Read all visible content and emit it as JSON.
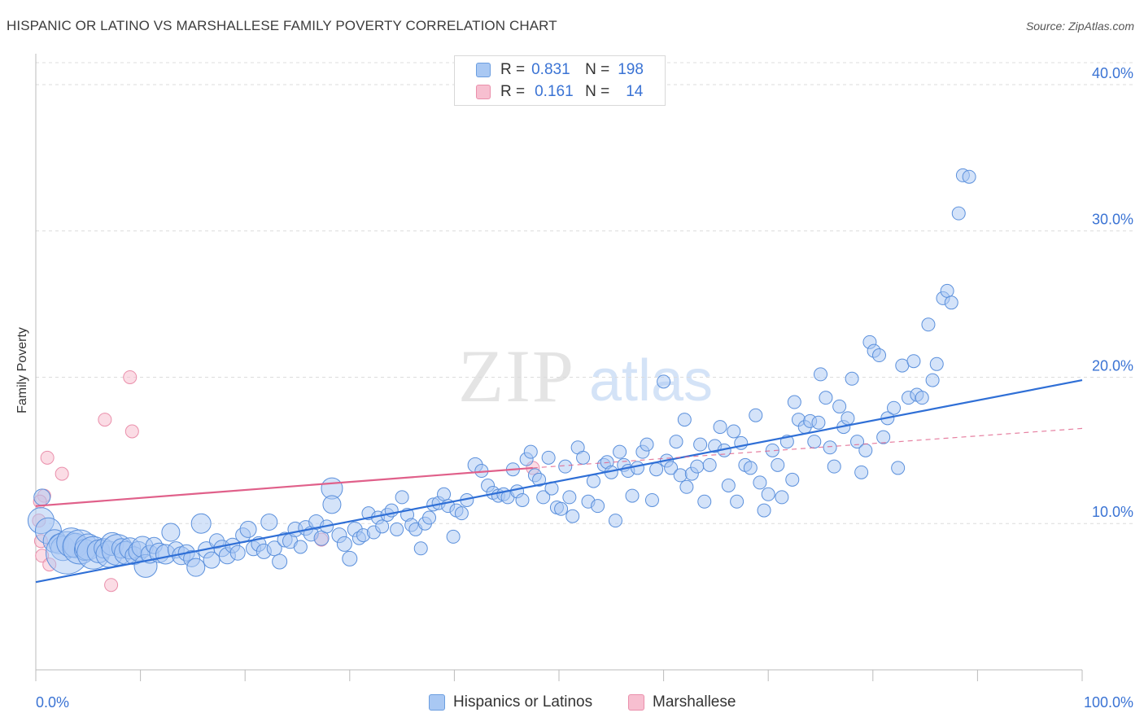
{
  "title": "HISPANIC OR LATINO VS MARSHALLESE FAMILY POVERTY CORRELATION CHART",
  "source": "Source: ZipAtlas.com",
  "watermark": {
    "zip": "ZIP",
    "atlas": "atlas"
  },
  "stats_legend": [
    {
      "r_label": "R =",
      "r_value": "0.831",
      "n_label": "N =",
      "n_value": "198",
      "color": "#a9c8f3"
    },
    {
      "r_label": "R =",
      "r_value": "0.161",
      "n_label": "N =",
      "n_value": "14",
      "color": "#f7bfd0"
    }
  ],
  "bottom_legend": [
    {
      "label": "Hispanics or Latinos",
      "color": "#a9c8f3"
    },
    {
      "label": "Marshallese",
      "color": "#f7bfd0"
    }
  ],
  "chart_data": {
    "type": "scatter",
    "title": "HISPANIC OR LATINO VS MARSHALLESE FAMILY POVERTY CORRELATION CHART",
    "xlabel": "",
    "ylabel": "Family Poverty",
    "xlim": [
      0,
      100
    ],
    "ylim": [
      0,
      41.5
    ],
    "x_tick_labels": [
      "0.0%",
      "100.0%"
    ],
    "y_ticks": [
      10,
      20,
      30,
      40
    ],
    "y_tick_labels": [
      "10.0%",
      "20.0%",
      "30.0%",
      "40.0%"
    ],
    "grid": "horizontal dashed",
    "colors": {
      "blue_point": "#a9c8f3",
      "blue_line": "#2f6fd6",
      "pink_point": "#f7bfd0",
      "pink_line": "#e0608a",
      "tick_text": "#3a73d4"
    },
    "series": [
      {
        "name": "Hispanics or Latinos",
        "r": 0.831,
        "n": 198,
        "trend": {
          "x": [
            0,
            100
          ],
          "y": [
            6.0,
            19.8
          ]
        },
        "points": [
          [
            0.5,
            10.2,
            1.6
          ],
          [
            0.6,
            11.8,
            1.0
          ],
          [
            1.2,
            9.5,
            1.6
          ],
          [
            1.8,
            8.8,
            1.4
          ],
          [
            2.2,
            8.6,
            1.2
          ],
          [
            2.6,
            8.3,
            1.5
          ],
          [
            3.0,
            8.0,
            2.6
          ],
          [
            3.4,
            8.7,
            1.8
          ],
          [
            3.8,
            8.5,
            1.5
          ],
          [
            4.2,
            8.4,
            2.1
          ],
          [
            4.7,
            8.2,
            1.3
          ],
          [
            5.0,
            8.4,
            1.6
          ],
          [
            5.5,
            8.0,
            2.0
          ],
          [
            6.0,
            8.1,
            1.4
          ],
          [
            6.5,
            8.3,
            1.2
          ],
          [
            7.0,
            7.9,
            1.6
          ],
          [
            7.3,
            8.6,
            1.4
          ],
          [
            7.8,
            8.2,
            1.9
          ],
          [
            8.2,
            8.3,
            1.2
          ],
          [
            8.6,
            8.0,
            1.4
          ],
          [
            9.0,
            8.3,
            1.3
          ],
          [
            9.4,
            7.8,
            1.1
          ],
          [
            9.8,
            8.1,
            1.2
          ],
          [
            10.2,
            8.4,
            1.3
          ],
          [
            10.5,
            7.1,
            1.4
          ],
          [
            10.9,
            7.9,
            1.1
          ],
          [
            11.3,
            8.5,
            1.0
          ],
          [
            11.8,
            8.0,
            1.2
          ],
          [
            12.4,
            7.9,
            1.2
          ],
          [
            12.9,
            9.4,
            1.1
          ],
          [
            13.4,
            8.2,
            1.0
          ],
          [
            13.9,
            7.8,
            1.1
          ],
          [
            14.4,
            8.0,
            1.0
          ],
          [
            14.9,
            7.6,
            1.0
          ],
          [
            15.3,
            7.0,
            1.1
          ],
          [
            15.8,
            10.0,
            1.2
          ],
          [
            16.3,
            8.2,
            1.0
          ],
          [
            16.8,
            7.5,
            1.0
          ],
          [
            17.3,
            8.8,
            0.9
          ],
          [
            17.8,
            8.3,
            1.0
          ],
          [
            18.3,
            7.8,
            1.0
          ],
          [
            18.8,
            8.5,
            0.9
          ],
          [
            19.3,
            8.0,
            0.9
          ],
          [
            19.8,
            9.2,
            0.9
          ],
          [
            20.3,
            9.6,
            1.0
          ],
          [
            20.8,
            8.3,
            0.9
          ],
          [
            21.3,
            8.6,
            0.9
          ],
          [
            21.8,
            8.1,
            0.9
          ],
          [
            22.3,
            10.1,
            1.0
          ],
          [
            22.8,
            8.3,
            0.9
          ],
          [
            23.3,
            7.4,
            0.9
          ],
          [
            23.8,
            8.9,
            0.9
          ],
          [
            24.3,
            8.8,
            0.9
          ],
          [
            24.8,
            9.6,
            0.9
          ],
          [
            25.3,
            8.4,
            0.8
          ],
          [
            25.8,
            9.7,
            0.9
          ],
          [
            26.3,
            9.3,
            0.9
          ],
          [
            26.8,
            10.1,
            0.9
          ],
          [
            27.3,
            9.0,
            0.9
          ],
          [
            27.8,
            9.8,
            0.8
          ],
          [
            28.3,
            12.4,
            1.3
          ],
          [
            28.3,
            11.3,
            1.1
          ],
          [
            29.0,
            9.2,
            0.9
          ],
          [
            29.5,
            8.6,
            0.9
          ],
          [
            30.0,
            7.6,
            0.9
          ],
          [
            30.5,
            9.6,
            0.9
          ],
          [
            30.9,
            9.0,
            0.8
          ],
          [
            31.3,
            9.2,
            0.8
          ],
          [
            31.8,
            10.7,
            0.8
          ],
          [
            32.3,
            9.4,
            0.8
          ],
          [
            32.7,
            10.4,
            0.8
          ],
          [
            33.1,
            9.8,
            0.8
          ],
          [
            33.6,
            10.6,
            0.8
          ],
          [
            34.0,
            10.9,
            0.8
          ],
          [
            34.5,
            9.6,
            0.8
          ],
          [
            35.0,
            11.8,
            0.8
          ],
          [
            35.5,
            10.6,
            0.8
          ],
          [
            35.9,
            9.9,
            0.8
          ],
          [
            36.3,
            9.6,
            0.8
          ],
          [
            36.8,
            8.3,
            0.8
          ],
          [
            37.2,
            10.0,
            0.8
          ],
          [
            37.6,
            10.4,
            0.8
          ],
          [
            38.0,
            11.3,
            0.8
          ],
          [
            38.5,
            11.4,
            0.8
          ],
          [
            39.0,
            12.0,
            0.8
          ],
          [
            39.4,
            11.2,
            0.8
          ],
          [
            39.9,
            9.1,
            0.8
          ],
          [
            40.2,
            10.9,
            0.8
          ],
          [
            40.7,
            10.7,
            0.8
          ],
          [
            41.2,
            11.6,
            0.8
          ],
          [
            42.0,
            14.0,
            0.9
          ],
          [
            42.6,
            13.6,
            0.8
          ],
          [
            43.2,
            12.6,
            0.8
          ],
          [
            43.7,
            12.1,
            0.8
          ],
          [
            44.2,
            11.9,
            0.8
          ],
          [
            44.7,
            12.0,
            0.8
          ],
          [
            45.1,
            11.8,
            0.8
          ],
          [
            45.6,
            13.7,
            0.8
          ],
          [
            46.0,
            12.2,
            0.8
          ],
          [
            46.5,
            11.6,
            0.8
          ],
          [
            46.9,
            14.4,
            0.8
          ],
          [
            47.3,
            14.9,
            0.8
          ],
          [
            47.7,
            13.3,
            0.8
          ],
          [
            48.1,
            13.0,
            0.8
          ],
          [
            48.5,
            11.8,
            0.8
          ],
          [
            49.0,
            14.5,
            0.8
          ],
          [
            49.3,
            12.4,
            0.8
          ],
          [
            49.8,
            11.1,
            0.8
          ],
          [
            50.2,
            11.0,
            0.8
          ],
          [
            50.6,
            13.9,
            0.8
          ],
          [
            51.0,
            11.8,
            0.8
          ],
          [
            51.3,
            10.5,
            0.8
          ],
          [
            51.8,
            15.2,
            0.8
          ],
          [
            52.3,
            14.5,
            0.8
          ],
          [
            52.8,
            11.5,
            0.8
          ],
          [
            53.3,
            12.9,
            0.8
          ],
          [
            53.7,
            11.2,
            0.8
          ],
          [
            54.3,
            14.0,
            0.8
          ],
          [
            54.6,
            14.2,
            0.8
          ],
          [
            55.0,
            13.5,
            0.8
          ],
          [
            55.4,
            10.2,
            0.8
          ],
          [
            55.8,
            14.9,
            0.8
          ],
          [
            56.2,
            14.0,
            0.8
          ],
          [
            56.6,
            13.6,
            0.8
          ],
          [
            57.0,
            11.9,
            0.8
          ],
          [
            57.5,
            13.8,
            0.8
          ],
          [
            58.0,
            14.9,
            0.8
          ],
          [
            58.4,
            15.4,
            0.8
          ],
          [
            58.9,
            11.6,
            0.8
          ],
          [
            59.3,
            13.7,
            0.8
          ],
          [
            60.0,
            19.7,
            0.8
          ],
          [
            60.3,
            14.3,
            0.8
          ],
          [
            60.7,
            13.8,
            0.8
          ],
          [
            61.2,
            15.6,
            0.8
          ],
          [
            61.6,
            13.3,
            0.8
          ],
          [
            62.0,
            17.1,
            0.8
          ],
          [
            62.2,
            12.5,
            0.8
          ],
          [
            62.7,
            13.4,
            0.8
          ],
          [
            63.2,
            13.9,
            0.8
          ],
          [
            63.5,
            15.4,
            0.8
          ],
          [
            63.9,
            11.5,
            0.8
          ],
          [
            64.4,
            14.0,
            0.8
          ],
          [
            64.9,
            15.3,
            0.8
          ],
          [
            65.4,
            16.6,
            0.8
          ],
          [
            65.8,
            15.0,
            0.8
          ],
          [
            66.2,
            12.6,
            0.8
          ],
          [
            66.7,
            16.3,
            0.8
          ],
          [
            67.0,
            11.5,
            0.8
          ],
          [
            67.4,
            15.5,
            0.8
          ],
          [
            67.8,
            14.0,
            0.8
          ],
          [
            68.3,
            13.8,
            0.8
          ],
          [
            68.8,
            17.4,
            0.8
          ],
          [
            69.2,
            12.8,
            0.8
          ],
          [
            69.6,
            10.9,
            0.8
          ],
          [
            70.0,
            12.0,
            0.8
          ],
          [
            70.4,
            15.0,
            0.8
          ],
          [
            70.9,
            14.0,
            0.8
          ],
          [
            71.3,
            11.8,
            0.8
          ],
          [
            71.8,
            15.6,
            0.8
          ],
          [
            72.3,
            13.0,
            0.8
          ],
          [
            72.5,
            18.3,
            0.8
          ],
          [
            72.9,
            17.1,
            0.8
          ],
          [
            73.5,
            16.6,
            0.8
          ],
          [
            74.0,
            17.0,
            0.8
          ],
          [
            74.4,
            15.6,
            0.8
          ],
          [
            74.8,
            16.9,
            0.8
          ],
          [
            75.0,
            20.2,
            0.8
          ],
          [
            75.5,
            18.6,
            0.8
          ],
          [
            75.9,
            15.2,
            0.8
          ],
          [
            76.3,
            13.9,
            0.8
          ],
          [
            76.8,
            18.0,
            0.8
          ],
          [
            77.2,
            16.6,
            0.8
          ],
          [
            77.6,
            17.2,
            0.8
          ],
          [
            78.0,
            19.9,
            0.8
          ],
          [
            78.5,
            15.6,
            0.8
          ],
          [
            78.9,
            13.5,
            0.8
          ],
          [
            79.3,
            15.0,
            0.8
          ],
          [
            79.7,
            22.4,
            0.8
          ],
          [
            80.1,
            21.8,
            0.8
          ],
          [
            80.6,
            21.5,
            0.8
          ],
          [
            81.0,
            15.9,
            0.8
          ],
          [
            81.4,
            17.2,
            0.8
          ],
          [
            82.0,
            17.9,
            0.8
          ],
          [
            82.4,
            13.8,
            0.8
          ],
          [
            82.8,
            20.8,
            0.8
          ],
          [
            83.4,
            18.6,
            0.8
          ],
          [
            83.9,
            21.1,
            0.8
          ],
          [
            84.2,
            18.8,
            0.8
          ],
          [
            84.7,
            18.6,
            0.8
          ],
          [
            85.3,
            23.6,
            0.8
          ],
          [
            85.7,
            19.8,
            0.8
          ],
          [
            86.1,
            20.9,
            0.8
          ],
          [
            86.7,
            25.4,
            0.8
          ],
          [
            87.1,
            25.9,
            0.8
          ],
          [
            87.5,
            25.1,
            0.8
          ],
          [
            88.2,
            31.2,
            0.8
          ],
          [
            88.6,
            33.8,
            0.8
          ],
          [
            89.2,
            33.7,
            0.8
          ]
        ]
      },
      {
        "name": "Marshallese",
        "r": 0.161,
        "n": 14,
        "trend": {
          "x": [
            0,
            47.5
          ],
          "y": [
            11.2,
            13.8
          ]
        },
        "trend_extension": {
          "x": [
            47.5,
            100
          ],
          "y": [
            13.8,
            16.5
          ]
        },
        "points": [
          [
            0.3,
            10.2
          ],
          [
            0.5,
            8.8
          ],
          [
            0.6,
            7.8
          ],
          [
            0.8,
            11.9
          ],
          [
            1.1,
            14.5
          ],
          [
            1.3,
            7.2
          ],
          [
            2.5,
            13.4
          ],
          [
            6.6,
            17.1
          ],
          [
            7.2,
            5.8
          ],
          [
            9.0,
            20.0
          ],
          [
            9.2,
            16.3
          ],
          [
            27.3,
            8.9
          ],
          [
            47.5,
            13.8
          ],
          [
            0.4,
            11.5
          ]
        ]
      }
    ]
  }
}
